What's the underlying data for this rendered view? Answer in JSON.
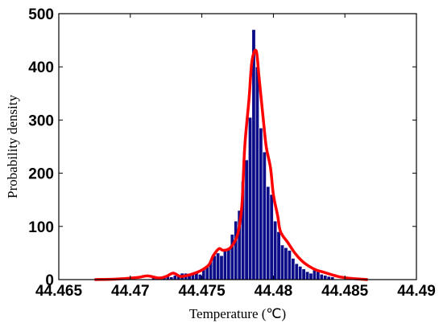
{
  "chart_data": {
    "type": "bar",
    "title": "",
    "xlabel": "Temperature (℃)",
    "ylabel": "Probability density",
    "xlim": [
      44.465,
      44.49
    ],
    "ylim": [
      0,
      500
    ],
    "xticks": [
      44.465,
      44.47,
      44.475,
      44.48,
      44.485,
      44.49
    ],
    "xtick_labels": [
      "44.465",
      "44.47",
      "44.475",
      "44.48",
      "44.485",
      "44.49"
    ],
    "yticks": [
      0,
      100,
      200,
      300,
      400,
      500
    ],
    "ytick_labels": [
      "0",
      "100",
      "200",
      "300",
      "400",
      "500"
    ],
    "grid": false,
    "legend": "none",
    "bar_color": "#0d0d8a",
    "curve_color": "#ff0000",
    "histogram": {
      "bin_width": 0.00025,
      "bins_start": [
        44.4715,
        44.47175,
        44.472,
        44.47225,
        44.4725,
        44.47275,
        44.473,
        44.47325,
        44.4735,
        44.47375,
        44.474,
        44.47425,
        44.4745,
        44.47475,
        44.475,
        44.47525,
        44.4755,
        44.47575,
        44.476,
        44.47625,
        44.4765,
        44.47675,
        44.477,
        44.47725,
        44.4775,
        44.47775,
        44.478,
        44.47825,
        44.4785,
        44.47875,
        44.479,
        44.47925,
        44.4795,
        44.47975,
        44.48,
        44.48025,
        44.4805,
        44.48075,
        44.481,
        44.48125,
        44.4815,
        44.48175,
        44.482,
        44.48225,
        44.4825,
        44.48275,
        44.483,
        44.48325,
        44.4835,
        44.48375,
        44.484
      ],
      "density": [
        5,
        3,
        3,
        4,
        6,
        5,
        8,
        7,
        12,
        12,
        8,
        10,
        15,
        10,
        20,
        25,
        35,
        45,
        50,
        45,
        55,
        60,
        85,
        110,
        130,
        185,
        225,
        305,
        470,
        400,
        285,
        240,
        175,
        160,
        110,
        90,
        65,
        60,
        55,
        40,
        30,
        25,
        20,
        15,
        12,
        18,
        15,
        10,
        8,
        6,
        5
      ]
    },
    "density_curve": {
      "x": [
        44.4675,
        44.469,
        44.4705,
        44.4712,
        44.472,
        44.4725,
        44.473,
        44.4735,
        44.474,
        44.4745,
        44.475,
        44.4755,
        44.4758,
        44.4762,
        44.4765,
        44.477,
        44.4775,
        44.4778,
        44.478,
        44.4783,
        44.4785,
        44.4788,
        44.479,
        44.4793,
        44.4795,
        44.4798,
        44.48,
        44.4803,
        44.4805,
        44.481,
        44.4815,
        44.482,
        44.4825,
        44.483,
        44.4835,
        44.4845,
        44.4855,
        44.4866
      ],
      "y": [
        0,
        1,
        4,
        7,
        3,
        6,
        12,
        6,
        8,
        12,
        18,
        28,
        45,
        58,
        55,
        60,
        85,
        140,
        250,
        340,
        410,
        430,
        380,
        300,
        250,
        210,
        160,
        120,
        90,
        70,
        50,
        35,
        25,
        18,
        14,
        6,
        2,
        0
      ]
    }
  }
}
